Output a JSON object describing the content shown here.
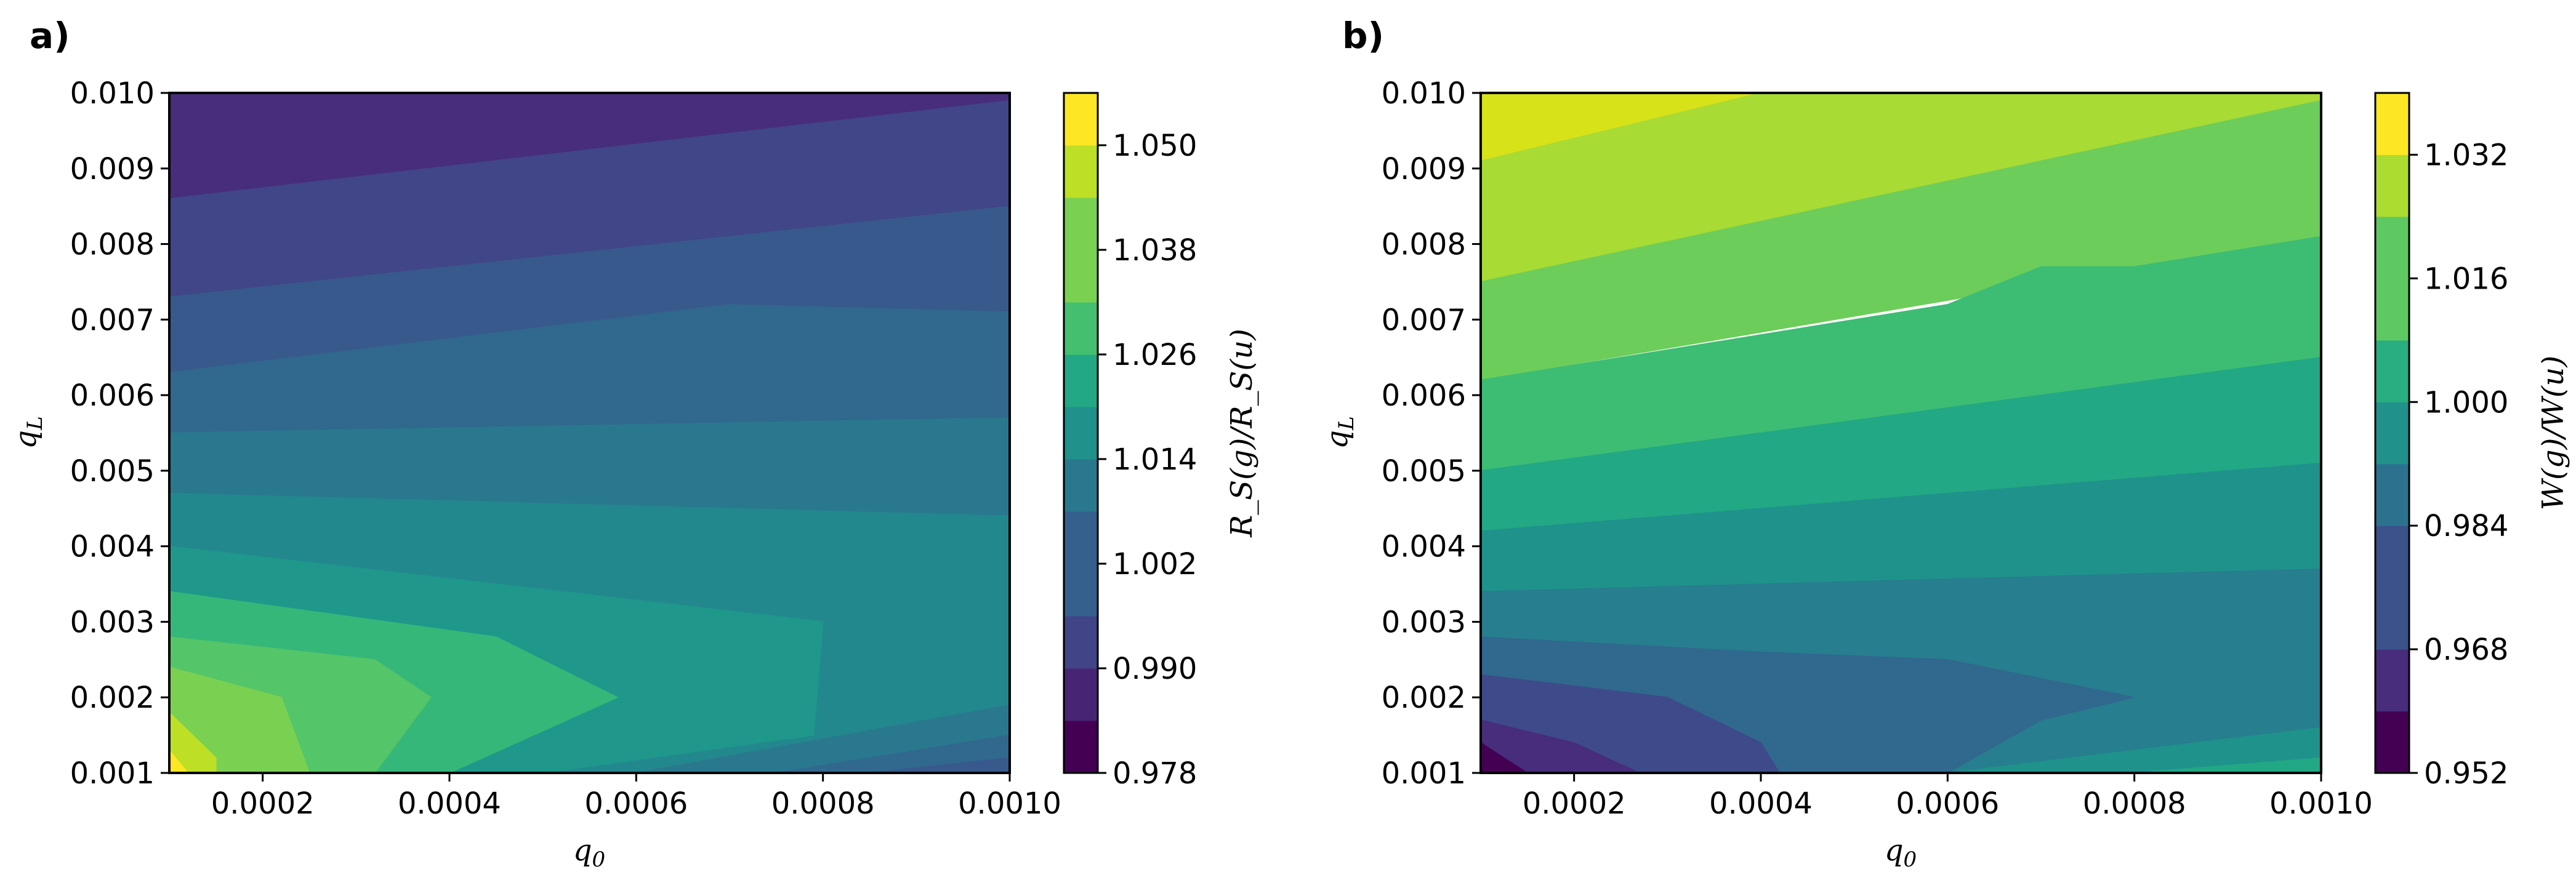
{
  "chart_data": [
    {
      "type": "contour",
      "panel_label": "a)",
      "xlabel": "q",
      "xlabel_sub": "0",
      "ylabel": "q",
      "ylabel_sub": "L",
      "xlim": [
        0.0001,
        0.001
      ],
      "ylim": [
        0.001,
        0.01
      ],
      "x_ticks": [
        0.0002,
        0.0004,
        0.0006,
        0.0008,
        0.001
      ],
      "x_tick_labels": [
        "0.0002",
        "0.0004",
        "0.0006",
        "0.0008",
        "0.0010"
      ],
      "y_ticks": [
        0.001,
        0.002,
        0.003,
        0.004,
        0.005,
        0.006,
        0.007,
        0.008,
        0.009,
        0.01
      ],
      "y_tick_labels": [
        "0.001",
        "0.002",
        "0.003",
        "0.004",
        "0.005",
        "0.006",
        "0.007",
        "0.008",
        "0.009",
        "0.010"
      ],
      "colorbar": {
        "label": "R_S(g)/R_S(u)",
        "levels": [
          0.978,
          0.984,
          0.99,
          0.996,
          1.002,
          1.008,
          1.014,
          1.02,
          1.026,
          1.032,
          1.038,
          1.044,
          1.05,
          1.056
        ],
        "tick_values": [
          0.978,
          0.99,
          1.002,
          1.014,
          1.026,
          1.038,
          1.05
        ],
        "tick_labels": [
          "0.978",
          "0.990",
          "1.002",
          "1.014",
          "1.026",
          "1.038",
          "1.050"
        ],
        "colors": [
          "#440154",
          "#482475",
          "#414487",
          "#355f8d",
          "#2a788e",
          "#21918c",
          "#22a884",
          "#44bf70",
          "#7ad151",
          "#bddf26",
          "#fde725"
        ]
      },
      "regions": [
        {
          "level_index": 1,
          "color": "#472d7b",
          "path": [
            [
              0.0001,
              0.01
            ],
            [
              0.001,
              0.01
            ],
            [
              0.001,
              0.0099
            ],
            [
              0.0001,
              0.0086
            ]
          ]
        },
        {
          "level_index": 2,
          "color": "#404688",
          "path": [
            [
              0.0001,
              0.0086
            ],
            [
              0.001,
              0.0099
            ],
            [
              0.001,
              0.0085
            ],
            [
              0.0001,
              0.0073
            ]
          ]
        },
        {
          "level_index": 3,
          "color": "#38598c",
          "path": [
            [
              0.0001,
              0.0073
            ],
            [
              0.001,
              0.0085
            ],
            [
              0.001,
              0.0071
            ],
            [
              0.0007,
              0.0072
            ],
            [
              0.0001,
              0.0063
            ]
          ]
        },
        {
          "level_index": 4,
          "color": "#31688e",
          "path": [
            [
              0.0001,
              0.0063
            ],
            [
              0.0007,
              0.0072
            ],
            [
              0.001,
              0.0071
            ],
            [
              0.001,
              0.0057
            ],
            [
              0.0001,
              0.0055
            ]
          ]
        },
        {
          "level_index": 5,
          "color": "#2a788e",
          "path": [
            [
              0.0001,
              0.0055
            ],
            [
              0.001,
              0.0057
            ],
            [
              0.001,
              0.0044
            ],
            [
              0.0001,
              0.0047
            ]
          ]
        },
        {
          "level_index": 6,
          "color": "#23888e",
          "path": [
            [
              0.0001,
              0.0047
            ],
            [
              0.001,
              0.0044
            ],
            [
              0.001,
              0.001
            ],
            [
              0.0001,
              0.001
            ]
          ]
        },
        {
          "level_index": 7,
          "color": "#1f988b",
          "path": [
            [
              0.0001,
              0.004
            ],
            [
              0.0008,
              0.003
            ],
            [
              0.00079,
              0.0015
            ],
            [
              0.0005,
              0.001
            ],
            [
              0.0001,
              0.001
            ]
          ]
        },
        {
          "level_index": 8,
          "color": "#35b779",
          "path": [
            [
              0.0001,
              0.0034
            ],
            [
              0.00045,
              0.0028
            ],
            [
              0.00058,
              0.002
            ],
            [
              0.0004,
              0.001
            ],
            [
              0.0001,
              0.001
            ]
          ]
        },
        {
          "level_index": 9,
          "color": "#54c568",
          "path": [
            [
              0.0001,
              0.0028
            ],
            [
              0.00032,
              0.0025
            ],
            [
              0.00038,
              0.002
            ],
            [
              0.00032,
              0.001
            ],
            [
              0.0001,
              0.001
            ]
          ]
        },
        {
          "level_index": 10,
          "color": "#7ad151",
          "path": [
            [
              0.0001,
              0.0024
            ],
            [
              0.00022,
              0.002
            ],
            [
              0.00025,
              0.001
            ],
            [
              0.0001,
              0.001
            ]
          ]
        },
        {
          "level_index": 11,
          "color": "#bddf26",
          "path": [
            [
              0.0001,
              0.0018
            ],
            [
              0.00015,
              0.0012
            ],
            [
              0.00015,
              0.001
            ],
            [
              0.0001,
              0.001
            ]
          ]
        },
        {
          "level_index": 12,
          "color": "#fde725",
          "path": [
            [
              0.0001,
              0.0013
            ],
            [
              0.00012,
              0.001
            ],
            [
              0.0001,
              0.001
            ]
          ]
        },
        {
          "level_index": 5,
          "color": "#2a788e",
          "path": [
            [
              0.0006,
              0.001
            ],
            [
              0.001,
              0.0019
            ],
            [
              0.001,
              0.001
            ]
          ]
        },
        {
          "level_index": 4,
          "color": "#31688e",
          "path": [
            [
              0.00075,
              0.001
            ],
            [
              0.001,
              0.0015
            ],
            [
              0.001,
              0.001
            ]
          ]
        },
        {
          "level_index": 3,
          "color": "#38598c",
          "path": [
            [
              0.00085,
              0.001
            ],
            [
              0.001,
              0.0012
            ],
            [
              0.001,
              0.001
            ]
          ]
        }
      ]
    },
    {
      "type": "contour",
      "panel_label": "b)",
      "xlabel": "q",
      "xlabel_sub": "0",
      "ylabel": "q",
      "ylabel_sub": "L",
      "xlim": [
        0.0001,
        0.001
      ],
      "ylim": [
        0.001,
        0.01
      ],
      "x_ticks": [
        0.0002,
        0.0004,
        0.0006,
        0.0008,
        0.001
      ],
      "x_tick_labels": [
        "0.0002",
        "0.0004",
        "0.0006",
        "0.0008",
        "0.0010"
      ],
      "y_ticks": [
        0.001,
        0.002,
        0.003,
        0.004,
        0.005,
        0.006,
        0.007,
        0.008,
        0.009,
        0.01
      ],
      "y_tick_labels": [
        "0.001",
        "0.002",
        "0.003",
        "0.004",
        "0.005",
        "0.006",
        "0.007",
        "0.008",
        "0.009",
        "0.010"
      ],
      "colorbar": {
        "label": "W(g)/W(u)",
        "levels": [
          0.952,
          0.96,
          0.968,
          0.976,
          0.984,
          0.992,
          1.0,
          1.008,
          1.016,
          1.024,
          1.032,
          1.04
        ],
        "tick_values": [
          0.952,
          0.968,
          0.984,
          1.0,
          1.016,
          1.032
        ],
        "tick_labels": [
          "0.952",
          "0.968",
          "0.984",
          "1.000",
          "1.016",
          "1.032"
        ],
        "colors": [
          "#440154",
          "#472d7b",
          "#3b528b",
          "#2c728e",
          "#21918c",
          "#28ae80",
          "#5ec962",
          "#addc30",
          "#fde725"
        ]
      },
      "regions": [
        {
          "level_index": 9,
          "color": "#d8e219",
          "path": [
            [
              0.0001,
              0.01
            ],
            [
              0.0004,
              0.01
            ],
            [
              0.0001,
              0.0091
            ]
          ]
        },
        {
          "level_index": 8,
          "color": "#a8db34",
          "path": [
            [
              0.0001,
              0.0091
            ],
            [
              0.0004,
              0.01
            ],
            [
              0.001,
              0.01
            ],
            [
              0.001,
              0.0099
            ],
            [
              0.0001,
              0.0075
            ]
          ]
        },
        {
          "level_index": 7,
          "color": "#6ccd5a",
          "path": [
            [
              0.0001,
              0.0075
            ],
            [
              0.001,
              0.0099
            ],
            [
              0.001,
              0.0081
            ],
            [
              0.0001,
              0.0062
            ]
          ]
        },
        {
          "level_index": 6,
          "color": "#3dbc74",
          "path": [
            [
              0.0001,
              0.0062
            ],
            [
              0.0006,
              0.0072
            ],
            [
              0.0007,
              0.0077
            ],
            [
              0.0008,
              0.0077
            ],
            [
              0.001,
              0.0081
            ],
            [
              0.001,
              0.0065
            ],
            [
              0.0001,
              0.005
            ]
          ]
        },
        {
          "level_index": 5,
          "color": "#22a884",
          "path": [
            [
              0.0001,
              0.005
            ],
            [
              0.001,
              0.0065
            ],
            [
              0.001,
              0.0051
            ],
            [
              0.0001,
              0.0042
            ]
          ]
        },
        {
          "level_index": 4,
          "color": "#1f928c",
          "path": [
            [
              0.0001,
              0.0042
            ],
            [
              0.001,
              0.0051
            ],
            [
              0.001,
              0.0037
            ],
            [
              0.0001,
              0.0034
            ]
          ]
        },
        {
          "level_index": 3,
          "color": "#277e8e",
          "path": [
            [
              0.0001,
              0.0034
            ],
            [
              0.001,
              0.0037
            ],
            [
              0.001,
              0.001
            ],
            [
              0.0001,
              0.001
            ]
          ]
        },
        {
          "level_index": 2,
          "color": "#31688e",
          "path": [
            [
              0.0001,
              0.0028
            ],
            [
              0.0004,
              0.0026
            ],
            [
              0.0006,
              0.0025
            ],
            [
              0.0008,
              0.002
            ],
            [
              0.0007,
              0.0017
            ],
            [
              0.0006,
              0.001
            ],
            [
              0.0001,
              0.001
            ]
          ]
        },
        {
          "level_index": 1,
          "color": "#3e4a89",
          "path": [
            [
              0.0001,
              0.0023
            ],
            [
              0.0003,
              0.002
            ],
            [
              0.0004,
              0.0014
            ],
            [
              0.00042,
              0.001
            ],
            [
              0.0001,
              0.001
            ]
          ]
        },
        {
          "level_index": 0,
          "color": "#472d7b",
          "path": [
            [
              0.0001,
              0.0017
            ],
            [
              0.0002,
              0.0014
            ],
            [
              0.00027,
              0.001
            ],
            [
              0.0001,
              0.001
            ]
          ]
        },
        {
          "level_index": 0,
          "color": "#440154",
          "path": [
            [
              0.0001,
              0.0014
            ],
            [
              0.00015,
              0.001
            ],
            [
              0.0001,
              0.001
            ]
          ]
        },
        {
          "level_index": 4,
          "color": "#1f928c",
          "path": [
            [
              0.0006,
              0.001
            ],
            [
              0.001,
              0.0016
            ],
            [
              0.001,
              0.001
            ]
          ]
        },
        {
          "level_index": 5,
          "color": "#22a884",
          "path": [
            [
              0.0008,
              0.001
            ],
            [
              0.001,
              0.0012
            ],
            [
              0.001,
              0.001
            ]
          ]
        }
      ]
    }
  ]
}
